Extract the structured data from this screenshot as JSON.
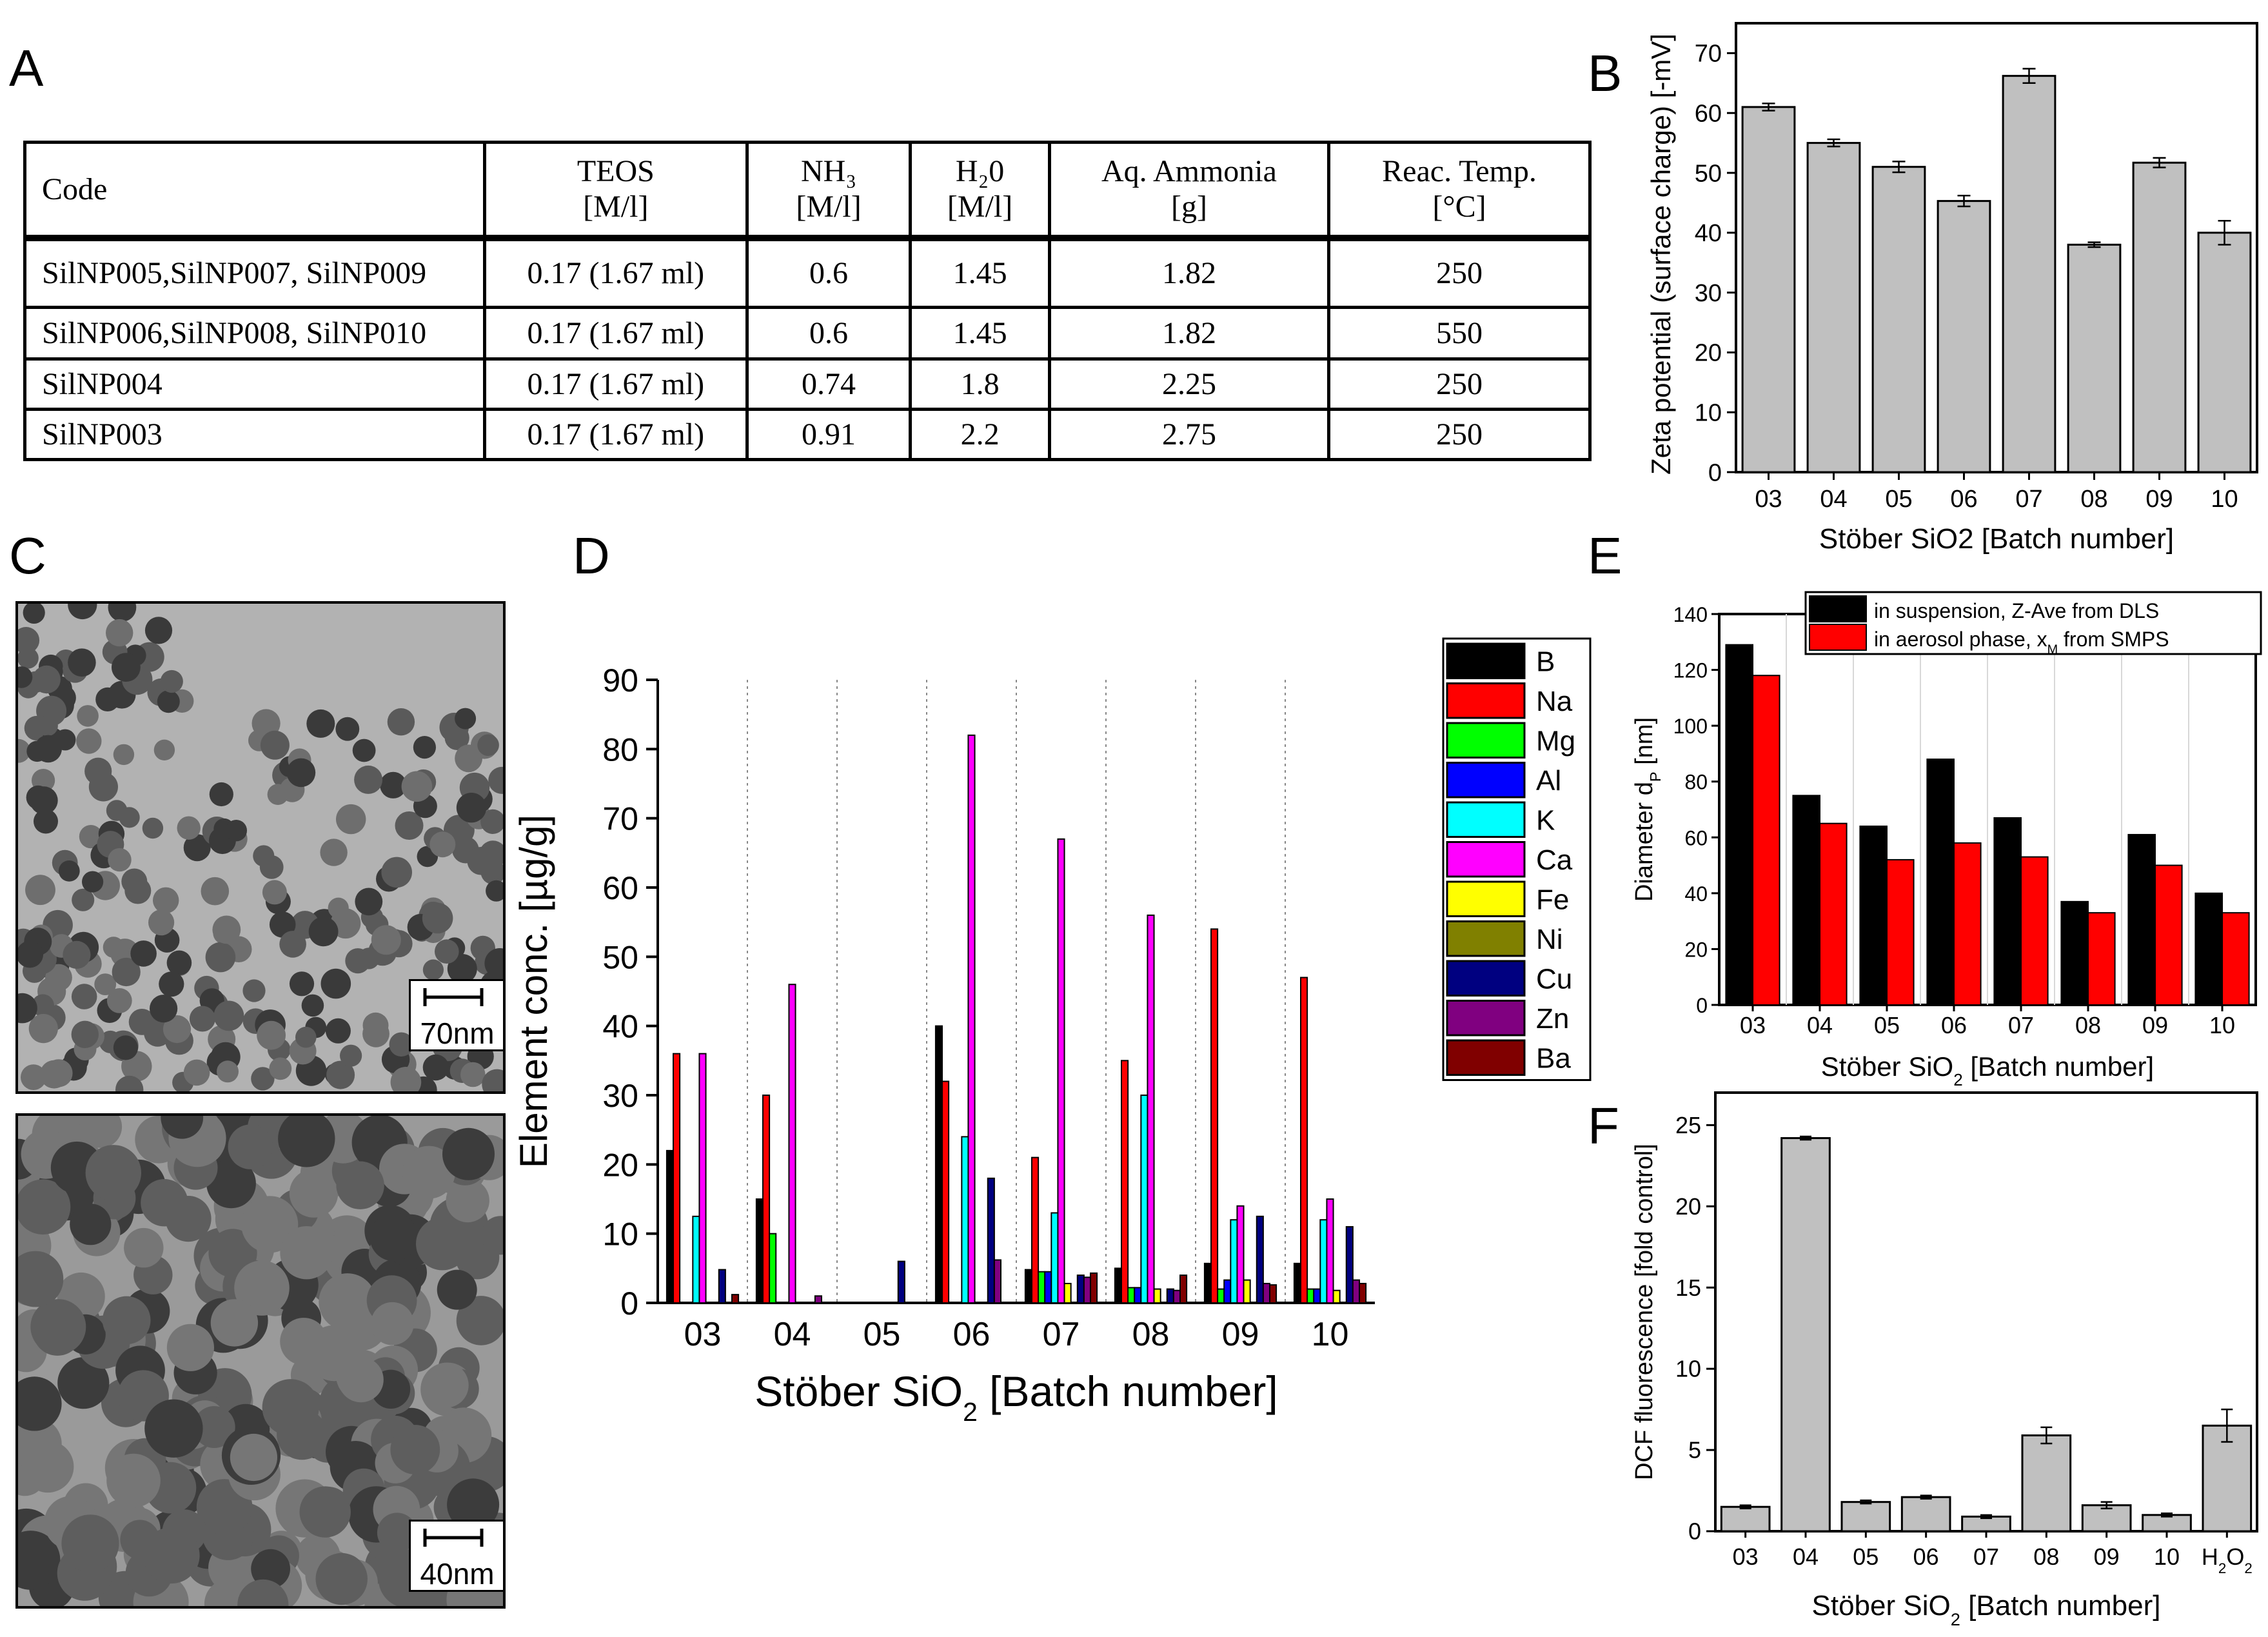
{
  "panel_letters": {
    "a": "A",
    "b": "B",
    "c": "C",
    "d": "D",
    "e": "E",
    "f": "F"
  },
  "table": {
    "headers": [
      {
        "line1": "Code",
        "line2": ""
      },
      {
        "line1": "TEOS",
        "line2": "[M/l]"
      },
      {
        "line1": "NH₃",
        "line2": "[M/l]"
      },
      {
        "line1": "H₂0",
        "line2": "[M/l]"
      },
      {
        "line1": "Aq. Ammonia",
        "line2": "[g]"
      },
      {
        "line1": "Reac. Temp.",
        "line2": "[°C]"
      }
    ],
    "rows": [
      [
        "SilNP005,SilNP007, SilNP009",
        "0.17 (1.67 ml)",
        "0.6",
        "1.45",
        "1.82",
        "250"
      ],
      [
        "SilNP006,SilNP008, SilNP010",
        "0.17 (1.67 ml)",
        "0.6",
        "1.45",
        "1.82",
        "550"
      ],
      [
        "SilNP004",
        "0.17 (1.67 ml)",
        "0.74",
        "1.8",
        "2.25",
        "250"
      ],
      [
        "SilNP003",
        "0.17 (1.67 ml)",
        "0.91",
        "2.2",
        "2.75",
        "250"
      ]
    ]
  },
  "tem": {
    "scale_top": "70nm",
    "scale_bottom": "40nm"
  },
  "chart_data": [
    {
      "id": "B",
      "type": "bar",
      "categories": [
        "03",
        "04",
        "05",
        "06",
        "07",
        "08",
        "09",
        "10"
      ],
      "values": [
        61,
        55,
        51,
        45.3,
        66.2,
        38,
        51.7,
        40
      ],
      "errors": [
        0.6,
        0.6,
        0.9,
        0.9,
        1.2,
        0.4,
        0.8,
        2.0
      ],
      "ylim": [
        0,
        75
      ],
      "yticks": [
        0,
        10,
        20,
        30,
        40,
        50,
        60,
        70
      ],
      "ylabel": "Zeta potential (surface charge) [-mV]",
      "xlabel": "Stöber SiO2 [Batch number]",
      "bar_color": "#c0c0c0"
    },
    {
      "id": "D",
      "type": "bar",
      "categories": [
        "03",
        "04",
        "05",
        "06",
        "07",
        "08",
        "09",
        "10"
      ],
      "series": [
        {
          "name": "B",
          "color": "#000000",
          "values": [
            22,
            15,
            0,
            40,
            4.8,
            5,
            5.7,
            5.7
          ]
        },
        {
          "name": "Na",
          "color": "#ff0000",
          "values": [
            36,
            30,
            0,
            32,
            21,
            35,
            54,
            47
          ]
        },
        {
          "name": "Mg",
          "color": "#00ff00",
          "values": [
            0,
            10,
            0,
            0,
            4.5,
            2.2,
            2,
            2
          ]
        },
        {
          "name": "Al",
          "color": "#0000ff",
          "values": [
            0,
            0,
            0,
            0,
            4.5,
            2.2,
            3.3,
            2
          ]
        },
        {
          "name": "K",
          "color": "#00ffff",
          "values": [
            12.5,
            0,
            0,
            24,
            13,
            30,
            12,
            12
          ]
        },
        {
          "name": "Ca",
          "color": "#ff00ff",
          "values": [
            36,
            46,
            0,
            82,
            67,
            56,
            14,
            15
          ]
        },
        {
          "name": "Fe",
          "color": "#ffff00",
          "values": [
            0,
            0,
            0,
            0,
            2.8,
            2,
            3.3,
            1.8
          ]
        },
        {
          "name": "Ni",
          "color": "#808000",
          "values": [
            0,
            0,
            0,
            0,
            0,
            0,
            0,
            0
          ]
        },
        {
          "name": "Cu",
          "color": "#000080",
          "values": [
            4.8,
            0,
            6,
            18,
            4,
            2,
            12.5,
            11
          ]
        },
        {
          "name": "Zn",
          "color": "#800080",
          "values": [
            0,
            1,
            0,
            6.2,
            3.7,
            1.8,
            2.8,
            3.3
          ]
        },
        {
          "name": "Ba",
          "color": "#800000",
          "values": [
            1.2,
            0,
            0,
            0,
            4.3,
            4,
            2.6,
            2.8
          ]
        }
      ],
      "ylim": [
        0,
        90
      ],
      "yticks": [
        0,
        10,
        20,
        30,
        40,
        50,
        60,
        70,
        80,
        90
      ],
      "ylabel": "Element conc. [µg/g]",
      "xlabel": "Stöber SiO",
      "xlabel_sub": "2",
      "xlabel_tail": " [Batch number]"
    },
    {
      "id": "E",
      "type": "bar",
      "categories": [
        "03",
        "04",
        "05",
        "06",
        "07",
        "08",
        "09",
        "10"
      ],
      "series": [
        {
          "name": "in suspension, Z-Ave from DLS",
          "color": "#000000",
          "values": [
            129,
            75,
            64,
            88,
            67,
            37,
            61,
            40
          ]
        },
        {
          "name": "in aerosol phase,  x",
          "name_sub": "M",
          "name_tail": " from SMPS",
          "color": "#ff0000",
          "values": [
            118,
            65,
            52,
            58,
            53,
            33,
            50,
            33
          ]
        }
      ],
      "ylim": [
        0,
        140
      ],
      "yticks": [
        0,
        20,
        40,
        60,
        80,
        100,
        120,
        140
      ],
      "ylabel": "Diameter d",
      "ylabel_sub": "P",
      "ylabel_tail": " [nm]",
      "xlabel": "Stöber SiO",
      "xlabel_sub": "2",
      "xlabel_tail": " [Batch number]"
    },
    {
      "id": "F",
      "type": "bar",
      "categories": [
        "03",
        "04",
        "05",
        "06",
        "07",
        "08",
        "09",
        "10",
        "H2O2"
      ],
      "category_labels": [
        {
          "t": "03"
        },
        {
          "t": "04"
        },
        {
          "t": "05"
        },
        {
          "t": "06"
        },
        {
          "t": "07"
        },
        {
          "t": "08"
        },
        {
          "t": "09"
        },
        {
          "t": "10"
        },
        {
          "t": "H",
          "s1": "2",
          "m": "O",
          "s2": "2"
        }
      ],
      "values": [
        1.5,
        24.2,
        1.8,
        2.1,
        0.9,
        5.9,
        1.6,
        1.0,
        6.5
      ],
      "errors": [
        0.1,
        0.1,
        0.1,
        0.1,
        0.1,
        0.5,
        0.2,
        0.1,
        1.0
      ],
      "ylim": [
        0,
        27
      ],
      "yticks": [
        0,
        5,
        10,
        15,
        20,
        25
      ],
      "ylabel": "DCF fluorescence [fold control]",
      "xlabel": "Stöber SiO",
      "xlabel_sub": "2",
      "xlabel_tail": " [Batch number]",
      "bar_color": "#c0c0c0"
    }
  ]
}
